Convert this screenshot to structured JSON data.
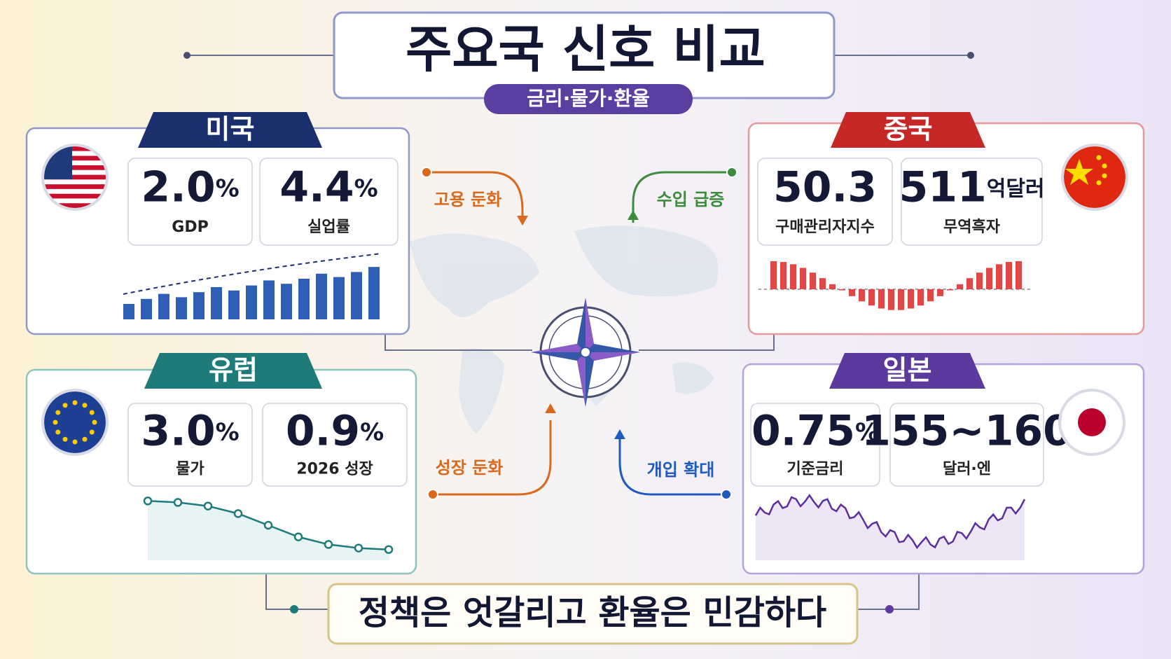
{
  "header": {
    "title": "주요국 신호 비교",
    "subtitle": "금리·물가·환율"
  },
  "countries": [
    {
      "name": "미국",
      "stats": [
        {
          "value": "2.0",
          "unit": "%",
          "label": "GDP"
        },
        {
          "value": "4.4",
          "unit": "%",
          "label": "실업률"
        }
      ]
    },
    {
      "name": "중국",
      "stats": [
        {
          "value": "50.3",
          "label": "구매관리자지수"
        },
        {
          "value": "511",
          "unit": "억달러",
          "label": "무역흑자"
        }
      ]
    },
    {
      "name": "유럽",
      "stats": [
        {
          "value": "3.0",
          "unit": "%",
          "label": "물가"
        },
        {
          "value": "0.9",
          "unit": "%",
          "label": "2026 성장"
        }
      ]
    },
    {
      "name": "일본",
      "stats": [
        {
          "value": "0.75",
          "unit": "%",
          "label": "기준금리"
        },
        {
          "value": "155~160",
          "label": "달러·엔"
        }
      ]
    }
  ],
  "signals": [
    "고용 둔화",
    "수입 급증",
    "성장 둔화",
    "개입 확대"
  ],
  "footer": "정책은 엇갈리고 환율은 민감하다"
}
